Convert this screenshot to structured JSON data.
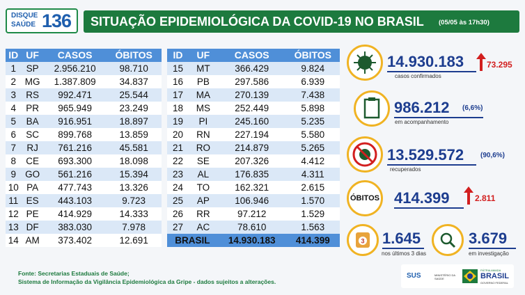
{
  "header": {
    "logo_top": "DISQUE",
    "logo_bottom": "SAÚDE",
    "logo_number": "136",
    "title": "SITUAÇÃO EPIDEMIOLÓGICA DA COVID-19 NO BRASIL",
    "date": "(05/05 às 17h30)"
  },
  "tables": [
    {
      "columns": [
        "ID",
        "UF",
        "CASOS",
        "ÓBITOS"
      ],
      "rows": [
        [
          "1",
          "SP",
          "2.956.210",
          "98.710"
        ],
        [
          "2",
          "MG",
          "1.387.809",
          "34.837"
        ],
        [
          "3",
          "RS",
          "992.471",
          "25.544"
        ],
        [
          "4",
          "PR",
          "965.949",
          "23.249"
        ],
        [
          "5",
          "BA",
          "916.951",
          "18.897"
        ],
        [
          "6",
          "SC",
          "899.768",
          "13.859"
        ],
        [
          "7",
          "RJ",
          "761.216",
          "45.581"
        ],
        [
          "8",
          "CE",
          "693.300",
          "18.098"
        ],
        [
          "9",
          "GO",
          "561.216",
          "15.394"
        ],
        [
          "10",
          "PA",
          "477.743",
          "13.326"
        ],
        [
          "11",
          "ES",
          "443.103",
          "9.723"
        ],
        [
          "12",
          "PE",
          "414.929",
          "14.333"
        ],
        [
          "13",
          "DF",
          "383.030",
          "7.978"
        ],
        [
          "14",
          "AM",
          "373.402",
          "12.691"
        ]
      ]
    },
    {
      "columns": [
        "ID",
        "UF",
        "CASOS",
        "ÓBITOS"
      ],
      "rows": [
        [
          "15",
          "MT",
          "366.429",
          "9.824"
        ],
        [
          "16",
          "PB",
          "297.586",
          "6.939"
        ],
        [
          "17",
          "MA",
          "270.139",
          "7.438"
        ],
        [
          "18",
          "MS",
          "252.449",
          "5.898"
        ],
        [
          "19",
          "PI",
          "245.160",
          "5.235"
        ],
        [
          "20",
          "RN",
          "227.194",
          "5.580"
        ],
        [
          "21",
          "RO",
          "214.879",
          "5.265"
        ],
        [
          "22",
          "SE",
          "207.326",
          "4.412"
        ],
        [
          "23",
          "AL",
          "176.835",
          "4.311"
        ],
        [
          "24",
          "TO",
          "162.321",
          "2.615"
        ],
        [
          "25",
          "AP",
          "106.946",
          "1.570"
        ],
        [
          "26",
          "RR",
          "97.212",
          "1.529"
        ],
        [
          "27",
          "AC",
          "78.610",
          "1.563"
        ]
      ],
      "total": [
        "BRASIL",
        "14.930.183",
        "414.399"
      ]
    }
  ],
  "stats": {
    "confirmed": {
      "value": "14.930.183",
      "delta": "73.295",
      "label": "casos confirmados"
    },
    "monitoring": {
      "value": "986.212",
      "percent": "(6,6%)",
      "label": "em acompanhamento"
    },
    "recovered": {
      "value": "13.529.572",
      "percent": "(90,6%)",
      "label": "recuperados"
    },
    "deaths": {
      "title": "ÓBITOS",
      "value": "414.399",
      "delta": "2.811"
    },
    "recent": {
      "icon": "3",
      "value": "1.645",
      "label": "nos últimos 3 dias"
    },
    "investigation": {
      "value": "3.679",
      "label": "em investigação"
    }
  },
  "footer": {
    "source": "Fonte: Secretarias Estaduais de Saúde;",
    "note": "Sistema de Informação da Vigilância Epidemiológica da Gripe - dados sujeitos a alterações.",
    "sus": "SUS",
    "ministry": "MINISTÉRIO DA SAÚDE",
    "motto": "PÁTRIA AMADA",
    "country": "BRASIL",
    "government": "GOVERNO FEDERAL"
  }
}
